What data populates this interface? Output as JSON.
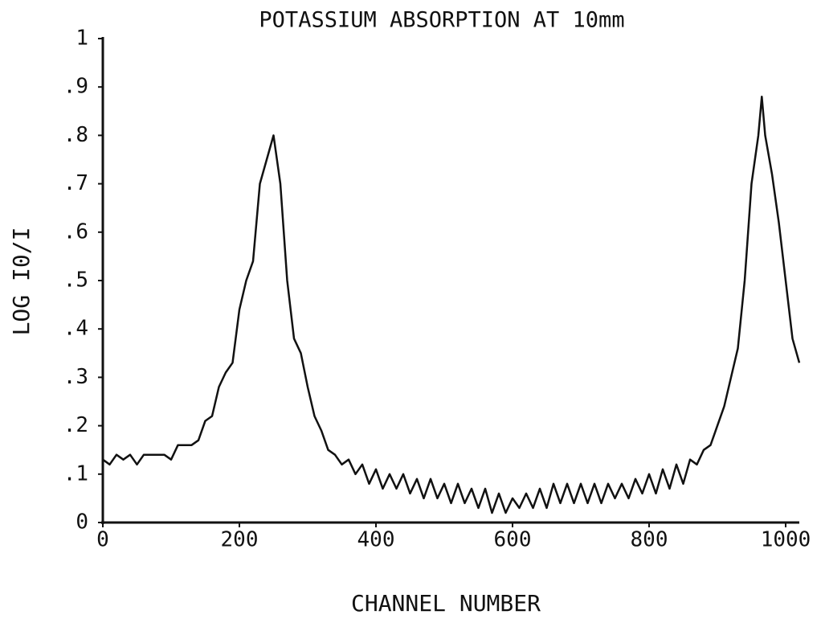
{
  "chart_data": {
    "type": "line",
    "title": "POTASSIUM ABSORPTION AT 10mm",
    "xlabel": "CHANNEL NUMBER",
    "ylabel": "LOG I0/I",
    "xlim": [
      0,
      1020
    ],
    "ylim": [
      0,
      1
    ],
    "xticks": [
      0,
      200,
      400,
      600,
      800,
      1000
    ],
    "yticks": [
      0,
      {
        "value": 0.1,
        "label": ".1"
      },
      {
        "value": 0.2,
        "label": ".2"
      },
      {
        "value": 0.3,
        "label": ".3"
      },
      {
        "value": 0.4,
        "label": ".4"
      },
      {
        "value": 0.5,
        "label": ".5"
      },
      {
        "value": 0.6,
        "label": ".6"
      },
      {
        "value": 0.7,
        "label": ".7"
      },
      {
        "value": 0.8,
        "label": ".8"
      },
      {
        "value": 0.9,
        "label": ".9"
      },
      1
    ],
    "color": "#111111",
    "x": [
      0,
      10,
      20,
      30,
      40,
      50,
      60,
      70,
      80,
      90,
      100,
      110,
      120,
      130,
      140,
      150,
      160,
      170,
      180,
      190,
      200,
      210,
      220,
      230,
      240,
      250,
      260,
      270,
      280,
      290,
      300,
      310,
      320,
      330,
      340,
      350,
      360,
      370,
      380,
      390,
      400,
      410,
      420,
      430,
      440,
      450,
      460,
      470,
      480,
      490,
      500,
      510,
      520,
      530,
      540,
      550,
      560,
      570,
      580,
      590,
      600,
      610,
      620,
      630,
      640,
      650,
      660,
      670,
      680,
      690,
      700,
      710,
      720,
      730,
      740,
      750,
      760,
      770,
      780,
      790,
      800,
      810,
      820,
      830,
      840,
      850,
      860,
      870,
      880,
      890,
      900,
      910,
      920,
      930,
      940,
      950,
      960,
      965,
      970,
      980,
      990,
      1000,
      1010,
      1020
    ],
    "values": [
      0.13,
      0.12,
      0.14,
      0.13,
      0.14,
      0.12,
      0.14,
      0.14,
      0.14,
      0.14,
      0.13,
      0.16,
      0.16,
      0.16,
      0.17,
      0.21,
      0.22,
      0.28,
      0.31,
      0.33,
      0.44,
      0.5,
      0.54,
      0.7,
      0.75,
      0.8,
      0.7,
      0.5,
      0.38,
      0.35,
      0.28,
      0.22,
      0.19,
      0.15,
      0.14,
      0.12,
      0.13,
      0.1,
      0.12,
      0.08,
      0.11,
      0.07,
      0.1,
      0.07,
      0.1,
      0.06,
      0.09,
      0.05,
      0.09,
      0.05,
      0.08,
      0.04,
      0.08,
      0.04,
      0.07,
      0.03,
      0.07,
      0.02,
      0.06,
      0.02,
      0.05,
      0.03,
      0.06,
      0.03,
      0.07,
      0.03,
      0.08,
      0.04,
      0.08,
      0.04,
      0.08,
      0.04,
      0.08,
      0.04,
      0.08,
      0.05,
      0.08,
      0.05,
      0.09,
      0.06,
      0.1,
      0.06,
      0.11,
      0.07,
      0.12,
      0.08,
      0.13,
      0.12,
      0.15,
      0.16,
      0.2,
      0.24,
      0.3,
      0.36,
      0.5,
      0.7,
      0.8,
      0.88,
      0.8,
      0.72,
      0.62,
      0.5,
      0.38,
      0.33
    ]
  }
}
